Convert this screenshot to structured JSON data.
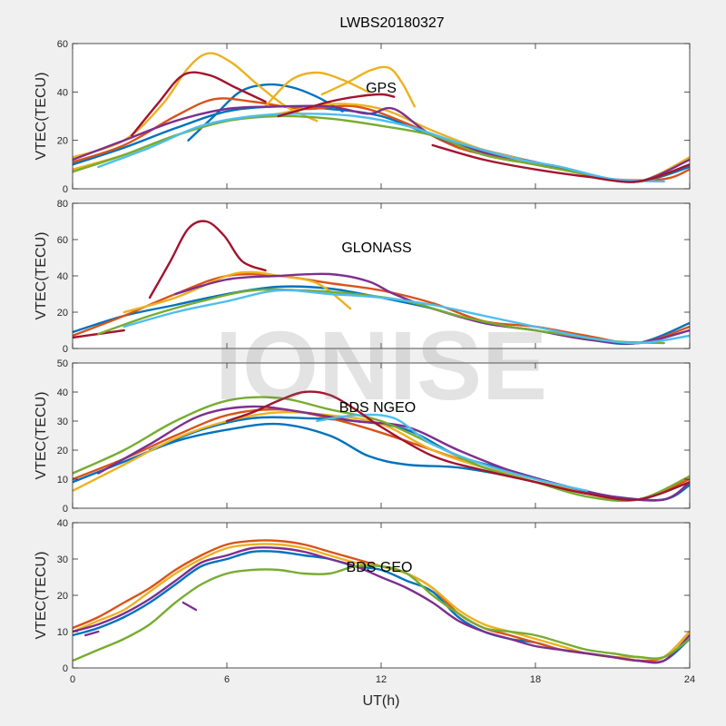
{
  "figure_title": "LWBS20180327",
  "x_label": "UT(h)",
  "watermark": "IONISE",
  "colors": [
    "#0072BD",
    "#D95319",
    "#EDB120",
    "#7E2F8E",
    "#77AC30",
    "#4DBEEE",
    "#A2142F"
  ],
  "chart_data": [
    {
      "type": "line",
      "annotation": "GPS",
      "ylabel": "VTEC(TECU)",
      "xlim": [
        0,
        24
      ],
      "ylim": [
        0,
        60
      ],
      "xticks": [
        0,
        6,
        12,
        18,
        24
      ],
      "yticks": [
        0,
        20,
        40,
        60
      ],
      "series": [
        {
          "color": "#0072BD",
          "x": [
            0,
            2,
            4,
            6,
            8,
            10,
            12,
            14,
            16,
            18,
            20,
            22,
            24
          ],
          "y": [
            10,
            17,
            25,
            32,
            34,
            33,
            30,
            22,
            16,
            11,
            6,
            3,
            9
          ]
        },
        {
          "color": "#0072BD",
          "x": [
            4.5,
            5.5,
            6.5,
            7.5,
            8.5,
            9.5,
            10.5
          ],
          "y": [
            20,
            30,
            40,
            43,
            42,
            38,
            32
          ]
        },
        {
          "color": "#D95319",
          "x": [
            0,
            2,
            4,
            5.5,
            7,
            9,
            11,
            13,
            15,
            17,
            19,
            21,
            23,
            24
          ],
          "y": [
            11,
            18,
            30,
            37,
            36,
            33,
            34,
            27,
            17,
            12,
            8,
            4,
            4,
            8
          ]
        },
        {
          "color": "#EDB120",
          "x": [
            0,
            2,
            3.5,
            4.5,
            5.3,
            6.2,
            7.2,
            8.3,
            9.5
          ],
          "y": [
            13,
            20,
            35,
            50,
            56,
            52,
            43,
            34,
            28
          ]
        },
        {
          "color": "#EDB120",
          "x": [
            7.5,
            8.5,
            9.5,
            10.5,
            11.5
          ],
          "y": [
            34,
            45,
            48,
            45,
            40
          ]
        },
        {
          "color": "#EDB120",
          "x": [
            9.7,
            10.7,
            11.6,
            12.3,
            12.8,
            13.3
          ],
          "y": [
            39,
            44,
            49,
            50,
            44,
            34
          ]
        },
        {
          "color": "#EDB120",
          "x": [
            0,
            2,
            4,
            6,
            8,
            10,
            12,
            14,
            16,
            18,
            20,
            22,
            24
          ],
          "y": [
            8,
            14,
            22,
            28,
            31,
            35,
            33,
            24,
            16,
            11,
            6,
            3,
            13
          ]
        },
        {
          "color": "#7E2F8E",
          "x": [
            0,
            2,
            4,
            6,
            8,
            10,
            11.5,
            12.5,
            14,
            16,
            18,
            20,
            22,
            24
          ],
          "y": [
            12,
            20,
            28,
            33,
            34,
            34,
            31,
            33,
            22,
            15,
            11,
            6,
            3,
            12
          ]
        },
        {
          "color": "#77AC30",
          "x": [
            0,
            2,
            4,
            6,
            8,
            10,
            12,
            14,
            16,
            18,
            20,
            22,
            24
          ],
          "y": [
            7,
            14,
            22,
            28,
            30,
            29,
            26,
            22,
            14,
            10,
            6,
            3,
            10
          ]
        },
        {
          "color": "#4DBEEE",
          "x": [
            1,
            3,
            5,
            7,
            9,
            11,
            13,
            15,
            17,
            19,
            21,
            23
          ],
          "y": [
            9,
            17,
            26,
            30,
            31,
            30,
            26,
            19,
            13,
            9,
            4,
            3
          ]
        },
        {
          "color": "#A2142F",
          "x": [
            2.3,
            3.3,
            4.3,
            5.3,
            6.3,
            7.5
          ],
          "y": [
            22,
            35,
            47,
            47,
            42,
            36
          ]
        },
        {
          "color": "#A2142F",
          "x": [
            8,
            9,
            10,
            11,
            12,
            12.5
          ],
          "y": [
            30,
            33,
            36,
            38,
            39,
            38
          ]
        },
        {
          "color": "#A2142F",
          "x": [
            14,
            16,
            18,
            20,
            22,
            24
          ],
          "y": [
            18,
            12,
            8,
            5,
            3,
            10
          ]
        }
      ]
    },
    {
      "type": "line",
      "annotation": "GLONASS",
      "ylabel": "VTEC(TECU)",
      "xlim": [
        0,
        24
      ],
      "ylim": [
        0,
        80
      ],
      "xticks": [
        0,
        6,
        12,
        18,
        24
      ],
      "yticks": [
        0,
        20,
        40,
        60,
        80
      ],
      "series": [
        {
          "color": "#A2142F",
          "x": [
            3,
            3.8,
            4.5,
            5.2,
            5.9,
            6.6,
            7.5
          ],
          "y": [
            28,
            48,
            66,
            70,
            62,
            48,
            43
          ]
        },
        {
          "color": "#A2142F",
          "x": [
            0,
            1,
            2
          ],
          "y": [
            6,
            8,
            10
          ]
        },
        {
          "color": "#0072BD",
          "x": [
            0,
            2,
            4,
            6,
            8,
            10,
            12,
            14,
            16,
            18,
            20,
            22,
            24
          ],
          "y": [
            9,
            18,
            24,
            30,
            34,
            33,
            28,
            22,
            14,
            10,
            5,
            3,
            14
          ]
        },
        {
          "color": "#D95319",
          "x": [
            0,
            2,
            4,
            6,
            8,
            10,
            12,
            14,
            16,
            18,
            20,
            22,
            24
          ],
          "y": [
            7,
            18,
            30,
            40,
            40,
            36,
            32,
            25,
            15,
            12,
            7,
            3,
            12
          ]
        },
        {
          "color": "#EDB120",
          "x": [
            2,
            4,
            6,
            7,
            8,
            9.5,
            10.8
          ],
          "y": [
            20,
            28,
            40,
            42,
            40,
            36,
            22
          ]
        },
        {
          "color": "#7E2F8E",
          "x": [
            4,
            6,
            8,
            10,
            11.5,
            12.5,
            14,
            16,
            18,
            20,
            22,
            24
          ],
          "y": [
            30,
            38,
            40,
            41,
            37,
            30,
            22,
            14,
            10,
            5,
            3,
            10
          ]
        },
        {
          "color": "#77AC30",
          "x": [
            1,
            3,
            5,
            7,
            9,
            11,
            13,
            15,
            17,
            19,
            21,
            23
          ],
          "y": [
            8,
            18,
            26,
            32,
            32,
            30,
            26,
            18,
            12,
            8,
            4,
            3
          ]
        },
        {
          "color": "#4DBEEE",
          "x": [
            2,
            4,
            6,
            8,
            10,
            12,
            14,
            16,
            18,
            20,
            22,
            24
          ],
          "y": [
            12,
            20,
            26,
            32,
            30,
            28,
            24,
            18,
            12,
            6,
            3,
            7
          ]
        }
      ]
    },
    {
      "type": "line",
      "annotation": "BDS NGEO",
      "ylabel": "VTEC(TECU)",
      "xlim": [
        0,
        24
      ],
      "ylim": [
        0,
        50
      ],
      "xticks": [
        0,
        6,
        12,
        18,
        24
      ],
      "yticks": [
        0,
        10,
        20,
        30,
        40,
        50
      ],
      "series": [
        {
          "color": "#0072BD",
          "x": [
            0,
            2,
            4,
            6,
            8,
            10,
            11.5,
            13,
            15,
            17,
            19,
            21,
            23,
            24
          ],
          "y": [
            9,
            16,
            23,
            27,
            29,
            25,
            18,
            15,
            14,
            11,
            7,
            4,
            3,
            8
          ]
        },
        {
          "color": "#0072BD",
          "x": [
            3,
            5,
            7,
            9,
            11,
            13,
            15,
            17,
            19,
            21,
            23,
            24
          ],
          "y": [
            20,
            27,
            31,
            31,
            30,
            27,
            18,
            13,
            8,
            4,
            3,
            9
          ]
        },
        {
          "color": "#D95319",
          "x": [
            0,
            2,
            4,
            6,
            8,
            10,
            12,
            14,
            16,
            18,
            20,
            22,
            24
          ],
          "y": [
            10,
            17,
            25,
            32,
            34,
            31,
            26,
            20,
            14,
            9,
            5,
            3,
            10
          ]
        },
        {
          "color": "#EDB120",
          "x": [
            0,
            2,
            4,
            6,
            8,
            10,
            12,
            14,
            16,
            18,
            20,
            22,
            24
          ],
          "y": [
            6,
            15,
            24,
            30,
            33,
            32,
            29,
            20,
            14,
            10,
            5,
            3,
            11
          ]
        },
        {
          "color": "#7E2F8E",
          "x": [
            1,
            3,
            5,
            7,
            9,
            11,
            13,
            15,
            17,
            19,
            21,
            23,
            24
          ],
          "y": [
            12,
            22,
            32,
            35,
            33,
            30,
            28,
            20,
            13,
            8,
            4,
            3,
            9
          ]
        },
        {
          "color": "#77AC30",
          "x": [
            0,
            2,
            4,
            6,
            8,
            10,
            12,
            14,
            16,
            18,
            20,
            22,
            24
          ],
          "y": [
            12,
            20,
            30,
            37,
            38,
            34,
            30,
            22,
            14,
            9,
            4,
            3,
            11
          ]
        },
        {
          "color": "#4DBEEE",
          "x": [
            9.5,
            11,
            12.5,
            14,
            16,
            18,
            20
          ],
          "y": [
            30,
            32,
            31,
            22,
            15,
            10,
            6
          ]
        },
        {
          "color": "#A2142F",
          "x": [
            6,
            7,
            8,
            9,
            10,
            11,
            12,
            14,
            16,
            18,
            20,
            22,
            24
          ],
          "y": [
            30,
            33,
            37,
            40,
            39,
            34,
            28,
            18,
            13,
            9,
            5,
            3,
            9
          ]
        }
      ]
    },
    {
      "type": "line",
      "annotation": "BDS GEO",
      "ylabel": "VTEC(TECU)",
      "xlim": [
        0,
        24
      ],
      "ylim": [
        0,
        40
      ],
      "xticks": [
        0,
        6,
        12,
        18,
        24
      ],
      "yticks": [
        0,
        10,
        20,
        30,
        40
      ],
      "series": [
        {
          "color": "#0072BD",
          "x": [
            0,
            1,
            2,
            3,
            4,
            5,
            6,
            7,
            8,
            9,
            10,
            11,
            12,
            13,
            14,
            15,
            16,
            17,
            18,
            19,
            20,
            21,
            22,
            23,
            24
          ],
          "y": [
            9,
            11,
            14,
            18,
            23,
            28,
            30,
            32,
            32,
            31,
            30,
            28,
            27,
            24,
            21,
            14,
            10,
            8,
            7,
            5,
            4,
            3,
            2,
            2,
            8
          ]
        },
        {
          "color": "#D95319",
          "x": [
            0,
            1,
            2,
            3,
            4,
            5,
            6,
            7,
            8,
            9,
            10,
            11,
            12,
            13,
            14,
            15,
            16,
            17,
            18,
            19,
            20,
            21,
            22,
            23,
            24
          ],
          "y": [
            11,
            14,
            18,
            22,
            27,
            31,
            34,
            35,
            35,
            34,
            32,
            30,
            28,
            26,
            22,
            15,
            11,
            9,
            7,
            5,
            4,
            3,
            2,
            3,
            10
          ]
        },
        {
          "color": "#EDB120",
          "x": [
            0,
            1,
            2,
            3,
            4,
            5,
            6,
            7,
            8,
            9,
            10,
            11,
            12,
            13,
            14,
            15,
            16,
            17,
            18,
            19,
            20,
            21,
            22,
            23,
            24
          ],
          "y": [
            10,
            13,
            16,
            21,
            26,
            30,
            33,
            34,
            34,
            33,
            31,
            29,
            28,
            26,
            22,
            16,
            12,
            10,
            8,
            6,
            4,
            3,
            3,
            3,
            10
          ]
        },
        {
          "color": "#7E2F8E",
          "x": [
            0,
            1,
            2,
            3,
            4,
            5,
            6,
            7,
            8,
            9,
            10,
            11,
            12,
            13,
            14,
            15,
            16,
            17,
            18,
            19,
            20,
            21,
            22,
            23,
            24
          ],
          "y": [
            10,
            12,
            15,
            19,
            24,
            29,
            31,
            33,
            33,
            32,
            30,
            28,
            25,
            22,
            18,
            13,
            10,
            8,
            6,
            5,
            4,
            3,
            2,
            2,
            9
          ]
        },
        {
          "color": "#77AC30",
          "x": [
            0,
            1,
            2,
            3,
            4,
            5,
            6,
            7,
            8,
            9,
            10,
            11,
            12,
            13,
            14,
            15,
            16,
            17,
            18,
            19,
            20,
            21,
            22,
            23,
            24
          ],
          "y": [
            2,
            5,
            8,
            12,
            18,
            23,
            26,
            27,
            27,
            26,
            26,
            28,
            28,
            26,
            20,
            15,
            11,
            10,
            9,
            7,
            5,
            4,
            3,
            3,
            8
          ]
        },
        {
          "color": "#7E2F8E",
          "x": [
            4.3,
            4.8
          ],
          "y": [
            18,
            16
          ]
        },
        {
          "color": "#7E2F8E",
          "x": [
            0.5,
            1
          ],
          "y": [
            9,
            10
          ]
        }
      ]
    }
  ]
}
